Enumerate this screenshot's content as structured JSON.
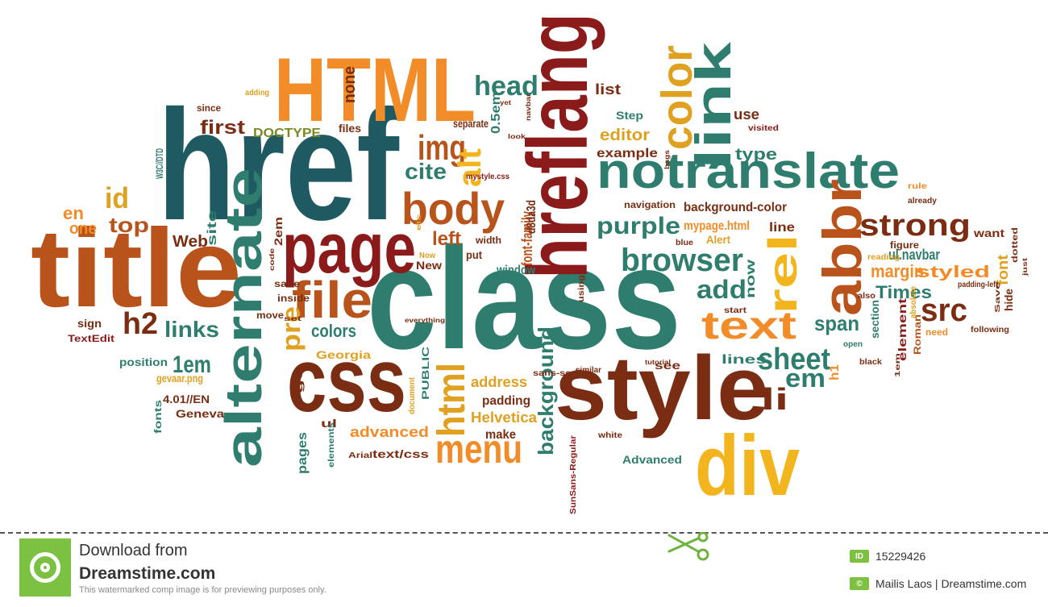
{
  "colors": {
    "teal": "#2e7d6e",
    "dark_teal": "#1f5a63",
    "orange": "#f28c28",
    "rust": "#b8531c",
    "dark_red": "#8b1a1a",
    "brown": "#7a2d12",
    "olive": "#7a8a24",
    "yellow": "#f2b51e",
    "gold": "#e0a020",
    "mustard": "#c99a2e",
    "brand_green": "#7cc142"
  },
  "words": [
    {
      "text": "class",
      "color": "teal"
    },
    {
      "text": "href",
      "color": "dark_teal"
    },
    {
      "text": "title",
      "color": "rust"
    },
    {
      "text": "HTML",
      "color": "orange"
    },
    {
      "text": "style",
      "color": "brown"
    },
    {
      "text": "hreflang",
      "color": "dark_red"
    },
    {
      "text": "css",
      "color": "brown"
    },
    {
      "text": "div",
      "color": "yellow"
    },
    {
      "text": "notranslate",
      "color": "teal"
    },
    {
      "text": "page",
      "color": "dark_red"
    },
    {
      "text": "alternate",
      "color": "teal"
    },
    {
      "text": "body",
      "color": "rust"
    },
    {
      "text": "abbr",
      "color": "rust"
    },
    {
      "text": "rel",
      "color": "yellow"
    },
    {
      "text": "strong",
      "color": "brown"
    },
    {
      "text": "file",
      "color": "rust"
    },
    {
      "text": "link",
      "color": "teal"
    },
    {
      "text": "color",
      "color": "gold"
    },
    {
      "text": "text",
      "color": "orange"
    },
    {
      "text": "browser",
      "color": "teal"
    },
    {
      "text": "head",
      "color": "teal"
    },
    {
      "text": "img",
      "color": "rust"
    },
    {
      "text": "menu",
      "color": "orange"
    },
    {
      "text": "sheet",
      "color": "teal"
    },
    {
      "text": "purple",
      "color": "teal"
    },
    {
      "text": "html",
      "color": "gold"
    },
    {
      "text": "li",
      "color": "brown"
    },
    {
      "text": "add",
      "color": "teal"
    },
    {
      "text": "src",
      "color": "brown"
    },
    {
      "text": "h2",
      "color": "brown"
    },
    {
      "text": "links",
      "color": "teal"
    },
    {
      "text": "alt",
      "color": "yellow"
    },
    {
      "text": "top",
      "color": "rust"
    },
    {
      "text": "em",
      "color": "teal"
    },
    {
      "text": "pre",
      "color": "gold"
    },
    {
      "text": "cite",
      "color": "teal"
    },
    {
      "text": "id",
      "color": "gold"
    },
    {
      "text": "first",
      "color": "brown"
    },
    {
      "text": "left",
      "color": "rust"
    },
    {
      "text": "1em",
      "color": "teal"
    },
    {
      "text": "colors",
      "color": "teal"
    },
    {
      "text": "span",
      "color": "teal"
    },
    {
      "text": "background",
      "color": "teal"
    },
    {
      "text": "Times",
      "color": "teal"
    },
    {
      "text": "margin",
      "color": "orange"
    },
    {
      "text": "editor",
      "color": "gold"
    },
    {
      "text": "example",
      "color": "brown"
    },
    {
      "text": "type",
      "color": "teal"
    },
    {
      "text": "use",
      "color": "brown"
    },
    {
      "text": "en",
      "color": "orange"
    },
    {
      "text": "one",
      "color": "orange"
    },
    {
      "text": "Web",
      "color": "brown"
    },
    {
      "text": "site",
      "color": "teal"
    },
    {
      "text": "W3C//DTD",
      "color": "teal"
    },
    {
      "text": "DOCTYPE",
      "color": "olive"
    },
    {
      "text": "files",
      "color": "brown"
    },
    {
      "text": "since",
      "color": "brown"
    },
    {
      "text": "adding",
      "color": "gold"
    },
    {
      "text": "none",
      "color": "brown"
    },
    {
      "text": "separate",
      "color": "brown"
    },
    {
      "text": "0.5em",
      "color": "teal"
    },
    {
      "text": "mystyle.css",
      "color": "dark_red"
    },
    {
      "text": "font-family",
      "color": "rust"
    },
    {
      "text": "d8da3d",
      "color": "brown"
    },
    {
      "text": "window",
      "color": "teal"
    },
    {
      "text": "width",
      "color": "brown"
    },
    {
      "text": "put",
      "color": "brown"
    },
    {
      "text": "New",
      "color": "brown"
    },
    {
      "text": "Now",
      "color": "gold"
    },
    {
      "text": "list",
      "color": "brown"
    },
    {
      "text": "Step",
      "color": "teal"
    },
    {
      "text": "visited",
      "color": "dark_red"
    },
    {
      "text": "navigation",
      "color": "brown"
    },
    {
      "text": "background-color",
      "color": "brown"
    },
    {
      "text": "mypage.html",
      "color": "orange"
    },
    {
      "text": "line",
      "color": "brown"
    },
    {
      "text": "Alert",
      "color": "gold"
    },
    {
      "text": "blue",
      "color": "brown"
    },
    {
      "text": "now",
      "color": "teal"
    },
    {
      "text": "start",
      "color": "brown"
    },
    {
      "text": "section",
      "color": "teal"
    },
    {
      "text": "element",
      "color": "dark_red"
    },
    {
      "text": "Roman",
      "color": "rust"
    },
    {
      "text": "styled",
      "color": "orange"
    },
    {
      "text": "ul.navbar",
      "color": "teal"
    },
    {
      "text": "figure",
      "color": "brown"
    },
    {
      "text": "reading",
      "color": "gold"
    },
    {
      "text": "want",
      "color": "brown"
    },
    {
      "text": "font",
      "color": "gold"
    },
    {
      "text": "hide",
      "color": "brown"
    },
    {
      "text": "padding-left",
      "color": "brown"
    },
    {
      "text": "rule",
      "color": "orange"
    },
    {
      "text": "already",
      "color": "brown"
    },
    {
      "text": "lines",
      "color": "teal"
    },
    {
      "text": "see",
      "color": "brown"
    },
    {
      "text": "similar",
      "color": "brown"
    },
    {
      "text": "open",
      "color": "teal"
    },
    {
      "text": "black",
      "color": "brown"
    },
    {
      "text": "h1",
      "color": "orange"
    },
    {
      "text": "address",
      "color": "gold"
    },
    {
      "text": "padding",
      "color": "brown"
    },
    {
      "text": "Helvetica",
      "color": "gold"
    },
    {
      "text": "make",
      "color": "brown"
    },
    {
      "text": "advanced",
      "color": "orange"
    },
    {
      "text": "text/css",
      "color": "brown"
    },
    {
      "text": "Arial",
      "color": "brown"
    },
    {
      "text": "pages",
      "color": "teal"
    },
    {
      "text": "ul",
      "color": "brown"
    },
    {
      "text": "elements",
      "color": "teal"
    },
    {
      "text": "PUBLIC",
      "color": "teal"
    },
    {
      "text": "document",
      "color": "gold"
    },
    {
      "text": "sans-serif",
      "color": "brown"
    },
    {
      "text": "SunSans-Regular",
      "color": "dark_red"
    },
    {
      "text": "Advanced",
      "color": "teal"
    },
    {
      "text": "white",
      "color": "brown"
    },
    {
      "text": "tutorial",
      "color": "brown"
    },
    {
      "text": "Georgia",
      "color": "gold"
    },
    {
      "text": "save",
      "color": "brown"
    },
    {
      "text": "inside",
      "color": "brown"
    },
    {
      "text": "move",
      "color": "brown"
    },
    {
      "text": "set",
      "color": "brown"
    },
    {
      "text": "everything",
      "color": "brown"
    },
    {
      "text": "position",
      "color": "teal"
    },
    {
      "text": "gevaar.png",
      "color": "gold"
    },
    {
      "text": "4.01//EN",
      "color": "brown"
    },
    {
      "text": "Geneva",
      "color": "brown"
    },
    {
      "text": "fonts",
      "color": "teal"
    },
    {
      "text": "sign",
      "color": "brown"
    },
    {
      "text": "TextEdit",
      "color": "dark_red"
    },
    {
      "text": "2em",
      "color": "brown"
    },
    {
      "text": "code",
      "color": "brown"
    },
    {
      "text": "also",
      "color": "brown"
    },
    {
      "text": "need",
      "color": "orange"
    },
    {
      "text": "following",
      "color": "brown"
    },
    {
      "text": "Save",
      "color": "brown"
    },
    {
      "text": "using",
      "color": "brown"
    },
    {
      "text": "look",
      "color": "brown"
    },
    {
      "text": "navbar",
      "color": "brown"
    },
    {
      "text": "bags",
      "color": "brown"
    },
    {
      "text": "1em",
      "color": "brown"
    },
    {
      "text": "dotted",
      "color": "brown"
    },
    {
      "text": "absolute",
      "color": "gold"
    },
    {
      "text": "etc",
      "color": "gold"
    },
    {
      "text": "just",
      "color": "brown"
    },
    {
      "text": "yet",
      "color": "brown"
    },
    {
      "text": "go",
      "color": "brown"
    },
    {
      "text": "serif",
      "color": "gold"
    }
  ],
  "footer": {
    "download_from": "Download from",
    "brand": "Dreamstime.com",
    "preview_note": "This watermarked comp image is for previewing purposes only.",
    "id_badge": "ID",
    "image_id": "15229426",
    "author": "Mailis Laos | Dreamstime.com",
    "scissors_icon": "scissors-icon"
  }
}
